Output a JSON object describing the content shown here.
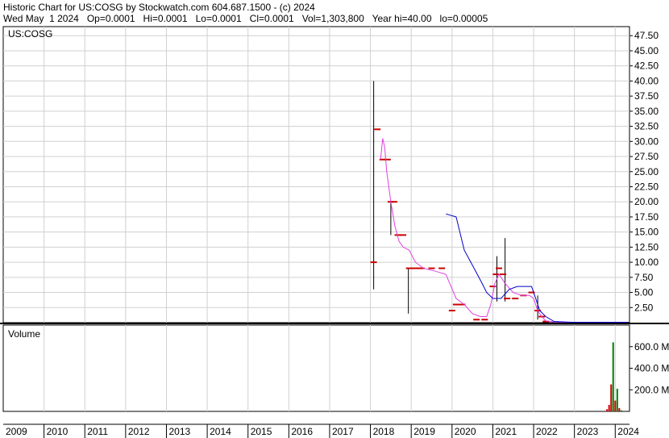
{
  "header": {
    "line1": "Historic Chart for US:COSG by Stockwatch.com 604.687.1500 - (c) 2024",
    "line2": "Wed May  1 2024   Op=0.0001   Hi=0.0001   Lo=0.0001   Cl=0.0001   Vol=1,303,800   Year hi=40.00   lo=0.00005"
  },
  "price_panel": {
    "symbol": "US:COSG"
  },
  "volume_panel": {
    "title": "Volume"
  },
  "colors": {
    "price_bars": "#cc0000",
    "range_bars": "#000000",
    "ma_short": "#e040e0",
    "ma_long": "#0000cc",
    "volume_green": "#008000",
    "volume_red": "#cc0000",
    "grid": "#d0d0d0"
  },
  "chart_data": [
    {
      "type": "line",
      "title": "Historic Chart for US:COSG",
      "xlabel": "",
      "ylabel": "",
      "x_ticks": [
        "2009",
        "2010",
        "2011",
        "2012",
        "2013",
        "2014",
        "2015",
        "2016",
        "2017",
        "2018",
        "2019",
        "2020",
        "2021",
        "2022",
        "2023",
        "2024"
      ],
      "y_ticks": [
        2.5,
        5,
        7.5,
        10,
        12.5,
        15,
        17.5,
        20,
        22.5,
        25,
        27.5,
        30,
        32.5,
        35,
        37.5,
        40,
        42.5,
        45,
        47.5
      ],
      "y_tick_labels": [
        "2.50",
        "5.00",
        "7.50",
        "10.00",
        "12.50",
        "15.00",
        "17.50",
        "20.00",
        "22.50",
        "25.00",
        "27.50",
        "30.00",
        "32.50",
        "35.00",
        "37.50",
        "40.00",
        "42.50",
        "45.00",
        "47.50"
      ],
      "ylim": [
        0,
        49
      ],
      "xlim": [
        2009.0,
        2024.35
      ],
      "grid": true,
      "ranges": [
        {
          "x": 2018.08,
          "low": 5.5,
          "high": 40.0
        },
        {
          "x": 2018.5,
          "low": 14.5,
          "high": 20.0
        },
        {
          "x": 2018.93,
          "low": 1.5,
          "high": 9.0
        },
        {
          "x": 2021.1,
          "low": 3.5,
          "high": 11.0
        },
        {
          "x": 2021.3,
          "low": 3.5,
          "high": 14.0
        },
        {
          "x": 2022.1,
          "low": 0.5,
          "high": 4.5
        }
      ],
      "price_ticks": [
        {
          "x": 2018.08,
          "y": 10.0
        },
        {
          "x": 2018.17,
          "y": 32.0
        },
        {
          "x": 2018.3,
          "y": 27.0
        },
        {
          "x": 2018.42,
          "y": 27.0
        },
        {
          "x": 2018.5,
          "y": 20.0
        },
        {
          "x": 2018.58,
          "y": 20.0
        },
        {
          "x": 2018.67,
          "y": 14.5
        },
        {
          "x": 2018.8,
          "y": 14.5
        },
        {
          "x": 2018.95,
          "y": 9.0
        },
        {
          "x": 2019.1,
          "y": 9.0
        },
        {
          "x": 2019.25,
          "y": 9.0
        },
        {
          "x": 2019.5,
          "y": 9.0
        },
        {
          "x": 2019.75,
          "y": 9.0
        },
        {
          "x": 2020.0,
          "y": 2.0
        },
        {
          "x": 2020.1,
          "y": 3.0
        },
        {
          "x": 2020.25,
          "y": 3.0
        },
        {
          "x": 2020.6,
          "y": 0.5
        },
        {
          "x": 2020.8,
          "y": 0.5
        },
        {
          "x": 2021.0,
          "y": 6.0
        },
        {
          "x": 2021.08,
          "y": 8.0
        },
        {
          "x": 2021.15,
          "y": 9.0
        },
        {
          "x": 2021.25,
          "y": 8.0
        },
        {
          "x": 2021.35,
          "y": 4.0
        },
        {
          "x": 2021.55,
          "y": 4.0
        },
        {
          "x": 2021.75,
          "y": 4.5
        },
        {
          "x": 2021.95,
          "y": 5.0
        },
        {
          "x": 2022.1,
          "y": 2.0
        },
        {
          "x": 2022.2,
          "y": 1.0
        },
        {
          "x": 2022.3,
          "y": 0.2
        }
      ],
      "series": [
        {
          "x": [
            2018.25,
            2018.3,
            2018.35,
            2018.4,
            2018.5,
            2018.6,
            2018.7,
            2018.8,
            2018.95,
            2019.1,
            2019.3,
            2019.6,
            2019.85,
            2020.1,
            2020.3,
            2020.5,
            2020.7,
            2020.85,
            2020.95,
            2021.05,
            2021.15,
            2021.3,
            2021.5,
            2021.7,
            2021.9,
            2022.0,
            2022.1,
            2022.2,
            2022.3,
            2022.5,
            2023.0,
            2024.3
          ],
          "y": [
            27.0,
            30.5,
            29.0,
            25.0,
            20.0,
            16.0,
            13.5,
            12.5,
            12.0,
            10.0,
            9.0,
            8.5,
            8.0,
            4.0,
            3.0,
            1.5,
            1.0,
            1.0,
            3.0,
            6.5,
            8.0,
            6.5,
            5.0,
            4.5,
            4.5,
            4.0,
            2.0,
            1.0,
            0.3,
            0.1,
            0.05,
            0.05
          ]
        },
        {
          "x": [
            2019.85,
            2020.1,
            2020.3,
            2020.5,
            2020.7,
            2020.85,
            2021.0,
            2021.2,
            2021.4,
            2021.6,
            2021.8,
            2021.95,
            2022.05,
            2022.15,
            2022.3,
            2022.5,
            2023.0,
            2024.3
          ],
          "y": [
            18.0,
            17.5,
            12.0,
            9.5,
            7.0,
            5.0,
            4.0,
            4.0,
            5.5,
            6.0,
            6.0,
            6.0,
            4.0,
            2.0,
            1.0,
            0.2,
            0.05,
            0.05
          ]
        }
      ]
    },
    {
      "type": "bar",
      "title": "Volume",
      "y_tick_labels": [
        "200.0 M",
        "400.0 M",
        "600.0 M"
      ],
      "y_ticks": [
        200,
        400,
        600
      ],
      "ylim": [
        0,
        800
      ],
      "bars": [
        {
          "x": 2023.8,
          "value": 20,
          "color": "red"
        },
        {
          "x": 2023.85,
          "value": 60,
          "color": "red"
        },
        {
          "x": 2023.9,
          "value": 250,
          "color": "red"
        },
        {
          "x": 2023.95,
          "value": 640,
          "color": "green"
        },
        {
          "x": 2024.0,
          "value": 100,
          "color": "red"
        },
        {
          "x": 2024.05,
          "value": 210,
          "color": "green"
        },
        {
          "x": 2024.1,
          "value": 30,
          "color": "red"
        },
        {
          "x": 2024.15,
          "value": 10,
          "color": "green"
        }
      ]
    }
  ]
}
